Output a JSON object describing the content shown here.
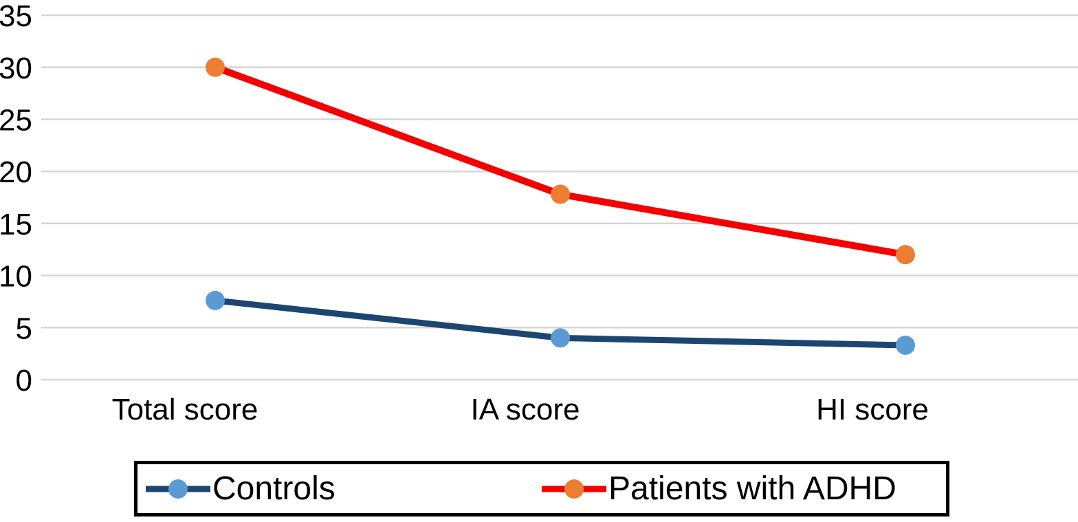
{
  "chart_data": {
    "type": "line",
    "title": "",
    "xlabel": "",
    "ylabel": "",
    "categories": [
      "Total score",
      "IA score",
      "HI score"
    ],
    "series": [
      {
        "name": "Controls",
        "values": [
          7.6,
          4,
          3.3
        ],
        "line_color": "#1C4670",
        "marker_color": "#5B9BD5"
      },
      {
        "name": "Patients with ADHD",
        "values": [
          30,
          17.8,
          12
        ],
        "line_color": "#F40000",
        "marker_color": "#ED7D31"
      }
    ],
    "y_axis": {
      "min": 0,
      "max": 35,
      "step": 5,
      "tick_labels": [
        "0",
        "5",
        "10",
        "15",
        "20",
        "25",
        "30",
        "35"
      ]
    },
    "grid": "horizontal-only",
    "gridline_color": "#D5D5D5",
    "legend_position": "bottom",
    "background_color": "#FFFFFF",
    "text_color": "#000000"
  }
}
